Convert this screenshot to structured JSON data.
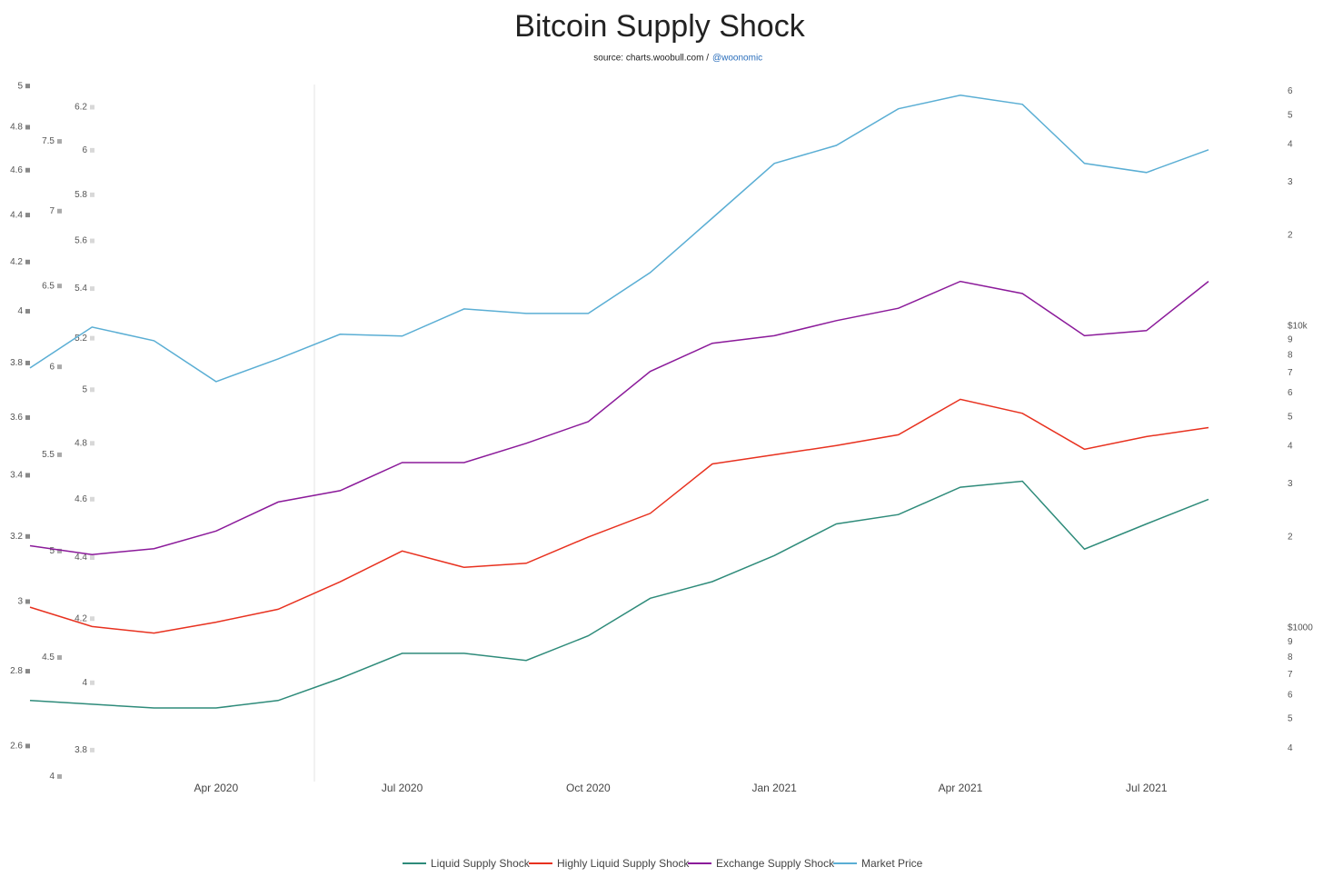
{
  "chart_data": {
    "type": "line",
    "title": "Bitcoin Supply Shock",
    "subtitle": "source: charts.woobull.com /",
    "subtitle_link": "@woonomic",
    "x": [
      "2020-01",
      "2020-02",
      "2020-03",
      "2020-04",
      "2020-05",
      "2020-06",
      "2020-07",
      "2020-08",
      "2020-09",
      "2020-10",
      "2020-11",
      "2020-12",
      "2021-01",
      "2021-02",
      "2021-03",
      "2021-04",
      "2021-05",
      "2021-06",
      "2021-07",
      "2021-08"
    ],
    "xticks": [
      {
        "value": "2020-04",
        "label": "Apr 2020"
      },
      {
        "value": "2020-07",
        "label": "Jul 2020"
      },
      {
        "value": "2020-10",
        "label": "Oct 2020"
      },
      {
        "value": "2021-01",
        "label": "Jan 2021"
      },
      {
        "value": "2021-04",
        "label": "Apr 2021"
      },
      {
        "value": "2021-07",
        "label": "Jul 2021"
      }
    ],
    "y_axes": [
      {
        "log": true,
        "lim": [
          2.51,
          5.03
        ],
        "ticks": [
          2.6,
          2.8,
          3,
          3.2,
          3.4,
          3.6,
          3.8,
          4,
          4.2,
          4.4,
          4.6,
          4.8,
          5
        ],
        "color": "#888888"
      },
      {
        "log": true,
        "lim": [
          3.98,
          7.97
        ],
        "ticks": [
          4,
          4.5,
          5,
          5.5,
          6,
          6.5,
          7,
          7.5
        ],
        "color": "#aaaaaa"
      },
      {
        "log": true,
        "lim": [
          3.71,
          6.33
        ],
        "ticks": [
          3.8,
          4,
          4.2,
          4.4,
          4.6,
          4.8,
          5,
          5.2,
          5.4,
          5.6,
          5.8,
          6,
          6.2
        ],
        "color": "#d8d8d8"
      },
      {
        "log": true,
        "lim": [
          310,
          65400
        ],
        "ticks": [
          {
            "value": 400,
            "label": "4"
          },
          {
            "value": 500,
            "label": "5"
          },
          {
            "value": 600,
            "label": "6"
          },
          {
            "value": 700,
            "label": "7"
          },
          {
            "value": 800,
            "label": "8"
          },
          {
            "value": 900,
            "label": "9"
          },
          {
            "value": 1000,
            "label": "$1000"
          },
          {
            "value": 2000,
            "label": "2"
          },
          {
            "value": 3000,
            "label": "3"
          },
          {
            "value": 4000,
            "label": "4"
          },
          {
            "value": 5000,
            "label": "5"
          },
          {
            "value": 6000,
            "label": "6"
          },
          {
            "value": 7000,
            "label": "7"
          },
          {
            "value": 8000,
            "label": "8"
          },
          {
            "value": 9000,
            "label": "9"
          },
          {
            "value": 10000,
            "label": "$10k"
          },
          {
            "value": 20000,
            "label": "2"
          },
          {
            "value": 30000,
            "label": "3"
          },
          {
            "value": 40000,
            "label": "4"
          },
          {
            "value": 50000,
            "label": "5"
          },
          {
            "value": 60000,
            "label": "6"
          }
        ]
      }
    ],
    "series": [
      {
        "name": "Liquid Supply Shock",
        "color": "#2e8b7a",
        "axis": 0,
        "values": [
          2.72,
          2.71,
          2.7,
          2.7,
          2.72,
          2.78,
          2.85,
          2.85,
          2.83,
          2.9,
          3.01,
          3.06,
          3.14,
          3.24,
          3.27,
          3.36,
          3.38,
          3.16,
          3.24,
          3.32
        ]
      },
      {
        "name": "Highly Liquid Supply Shock",
        "color": "#e8311f",
        "axis": 1,
        "values": [
          4.73,
          4.64,
          4.61,
          4.66,
          4.72,
          4.85,
          5.0,
          4.92,
          4.94,
          5.07,
          5.19,
          5.45,
          5.5,
          5.55,
          5.61,
          5.81,
          5.73,
          5.53,
          5.6,
          5.65
        ]
      },
      {
        "name": "Exchange Supply Shock",
        "color": "#8b1a9a",
        "axis": 2,
        "values": [
          4.44,
          4.41,
          4.43,
          4.49,
          4.59,
          4.63,
          4.73,
          4.73,
          4.8,
          4.88,
          5.07,
          5.18,
          5.21,
          5.27,
          5.32,
          5.43,
          5.38,
          5.21,
          5.23,
          5.43
        ]
      },
      {
        "name": "Market Price",
        "color": "#5aaed4",
        "axis": 3,
        "values": [
          7270,
          9930,
          8950,
          6550,
          7790,
          9400,
          9270,
          11410,
          11020,
          11020,
          15050,
          22800,
          34600,
          39700,
          52500,
          58200,
          54300,
          34600,
          32300,
          38400
        ]
      }
    ]
  }
}
